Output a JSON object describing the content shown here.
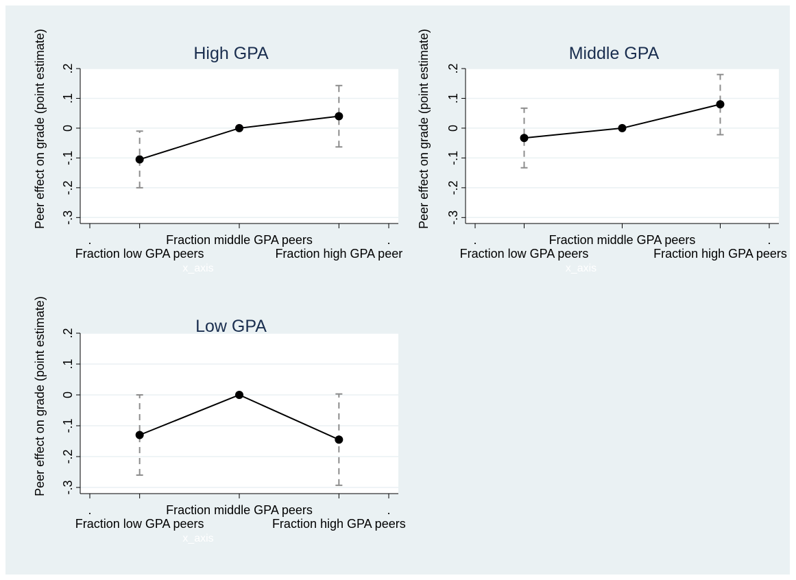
{
  "chart_data": [
    {
      "type": "line",
      "title": "High GPA",
      "ylabel": "Peer effect on grade (point estimate)",
      "xlabel": "x_axis",
      "xlim": [
        0,
        6
      ],
      "ylim": [
        -0.32,
        0.2
      ],
      "yticks": [
        ".2",
        ".1",
        "0",
        "-.1",
        "-.2",
        "-.3"
      ],
      "ytick_values": [
        0.2,
        0.1,
        0,
        -0.1,
        -0.2,
        -0.3
      ],
      "xticks": [
        {
          "x": 0,
          "label": "."
        },
        {
          "x": 1,
          "label": "Fraction low GPA peers"
        },
        {
          "x": 3,
          "label": "Fraction middle GPA peers"
        },
        {
          "x": 5,
          "label": "Fraction high GPA peer"
        },
        {
          "x": 6,
          "label": "."
        }
      ],
      "grid": true,
      "points": [
        {
          "x": 1,
          "y": -0.105,
          "ci": [
            -0.2,
            -0.01
          ]
        },
        {
          "x": 3,
          "y": 0.0,
          "ci": null
        },
        {
          "x": 5,
          "y": 0.04,
          "ci": [
            -0.063,
            0.143
          ]
        }
      ]
    },
    {
      "type": "line",
      "title": "Middle GPA",
      "ylabel": "Peer effect on grade (point estimate)",
      "xlabel": "x_axis",
      "xlim": [
        0,
        6
      ],
      "ylim": [
        -0.32,
        0.2
      ],
      "yticks": [
        ".2",
        ".1",
        "0",
        "-.1",
        "-.2",
        "-.3"
      ],
      "ytick_values": [
        0.2,
        0.1,
        0,
        -0.1,
        -0.2,
        -0.3
      ],
      "xticks": [
        {
          "x": 0,
          "label": "."
        },
        {
          "x": 1,
          "label": "Fraction low GPA peers"
        },
        {
          "x": 3,
          "label": "Fraction middle GPA peers"
        },
        {
          "x": 5,
          "label": "Fraction high GPA peers"
        },
        {
          "x": 6,
          "label": "."
        }
      ],
      "grid": true,
      "points": [
        {
          "x": 1,
          "y": -0.033,
          "ci": [
            -0.133,
            0.067
          ]
        },
        {
          "x": 3,
          "y": 0.0,
          "ci": null
        },
        {
          "x": 5,
          "y": 0.08,
          "ci": [
            -0.022,
            0.18
          ]
        }
      ]
    },
    {
      "type": "line",
      "title": "Low GPA",
      "ylabel": "Peer effect on grade (point estimate)",
      "xlabel": "x_axis",
      "xlim": [
        0,
        6
      ],
      "ylim": [
        -0.32,
        0.2
      ],
      "yticks": [
        ".2",
        ".1",
        "0",
        "-.1",
        "-.2",
        "-.3"
      ],
      "ytick_values": [
        0.2,
        0.1,
        0,
        -0.1,
        -0.2,
        -0.3
      ],
      "xticks": [
        {
          "x": 0,
          "label": "."
        },
        {
          "x": 1,
          "label": "Fraction low GPA peers"
        },
        {
          "x": 3,
          "label": "Fraction middle GPA peers"
        },
        {
          "x": 5,
          "label": "Fraction high GPA peers"
        },
        {
          "x": 6,
          "label": "."
        }
      ],
      "grid": true,
      "points": [
        {
          "x": 1,
          "y": -0.13,
          "ci": [
            -0.26,
            0.0
          ]
        },
        {
          "x": 3,
          "y": 0.0,
          "ci": null
        },
        {
          "x": 5,
          "y": -0.145,
          "ci": [
            -0.293,
            0.003
          ]
        }
      ]
    }
  ],
  "colors": {
    "background": "#eaf1f3",
    "plot_area": "#ffffff",
    "gridline": "#eaf1f3",
    "title": "#1a2e4f",
    "line": "#000000",
    "ci": "#8c8c8c",
    "x_axis_title": "#ffffff"
  }
}
